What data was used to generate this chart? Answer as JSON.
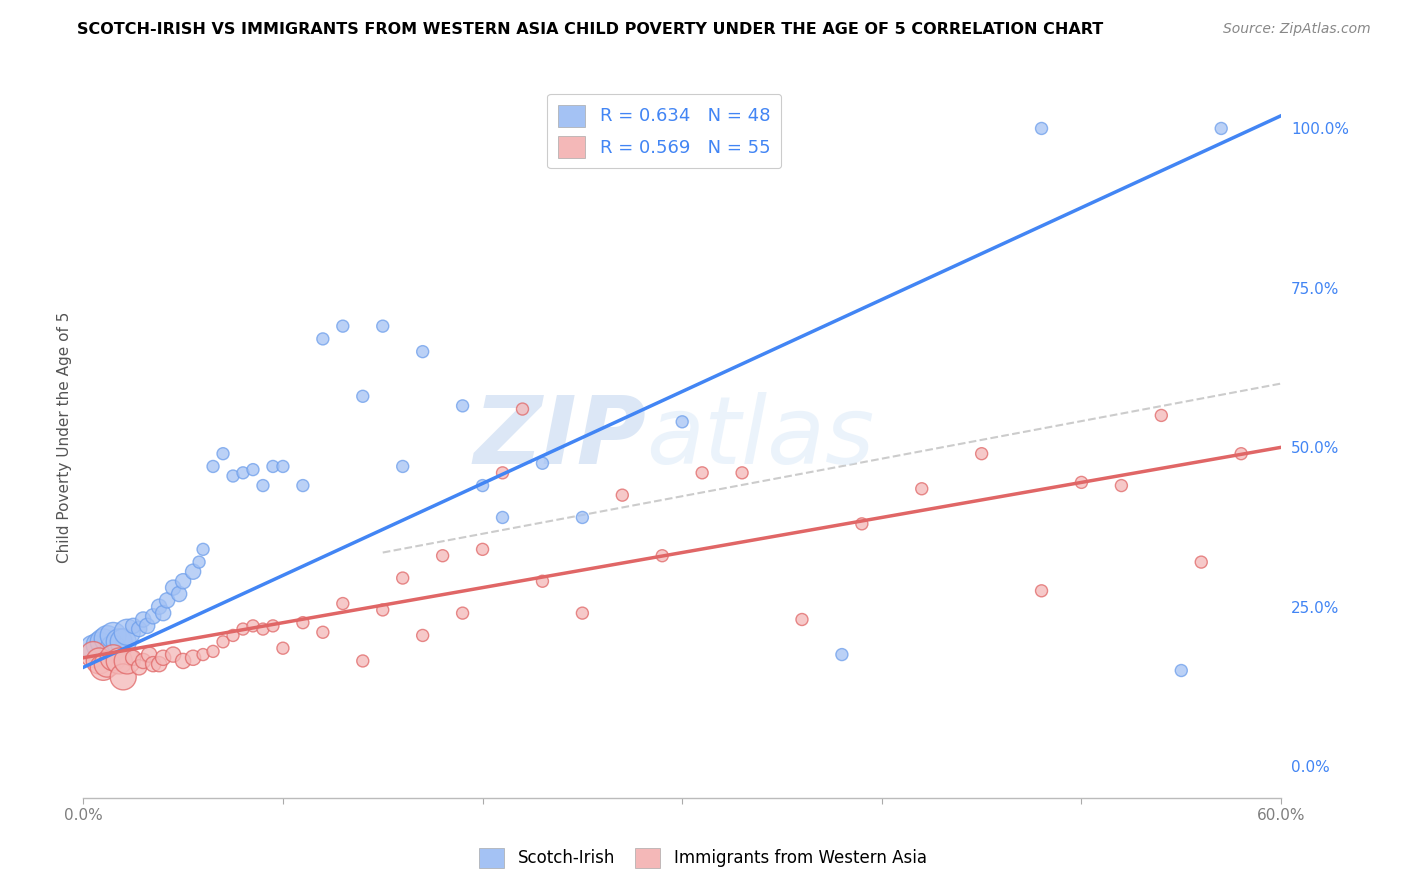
{
  "title": "SCOTCH-IRISH VS IMMIGRANTS FROM WESTERN ASIA CHILD POVERTY UNDER THE AGE OF 5 CORRELATION CHART",
  "source": "Source: ZipAtlas.com",
  "ylabel": "Child Poverty Under the Age of 5",
  "xlim": [
    0.0,
    0.6
  ],
  "ylim": [
    -0.05,
    1.08
  ],
  "xticks": [
    0.0,
    0.1,
    0.2,
    0.3,
    0.4,
    0.5,
    0.6
  ],
  "xticklabels": [
    "0.0%",
    "",
    "",
    "",
    "",
    "",
    "60.0%"
  ],
  "yticks_right": [
    0.0,
    0.25,
    0.5,
    0.75,
    1.0
  ],
  "yticklabels_right": [
    "0.0%",
    "25.0%",
    "50.0%",
    "75.0%",
    "100.0%"
  ],
  "blue_color": "#a4c2f4",
  "pink_color": "#f4b8b8",
  "blue_edge_color": "#6d9eeb",
  "pink_edge_color": "#e06666",
  "blue_line_color": "#4285f4",
  "pink_line_color": "#e06666",
  "dashed_line_color": "#cccccc",
  "legend_R_blue": "R = 0.634",
  "legend_N_blue": "N = 48",
  "legend_R_pink": "R = 0.569",
  "legend_N_pink": "N = 55",
  "blue_scatter_x": [
    0.005,
    0.008,
    0.01,
    0.012,
    0.015,
    0.015,
    0.018,
    0.02,
    0.022,
    0.025,
    0.028,
    0.03,
    0.032,
    0.035,
    0.038,
    0.04,
    0.042,
    0.045,
    0.048,
    0.05,
    0.055,
    0.058,
    0.06,
    0.065,
    0.07,
    0.075,
    0.08,
    0.085,
    0.09,
    0.095,
    0.1,
    0.11,
    0.12,
    0.13,
    0.14,
    0.15,
    0.16,
    0.17,
    0.19,
    0.2,
    0.21,
    0.23,
    0.25,
    0.3,
    0.38,
    0.48,
    0.55,
    0.57
  ],
  "blue_scatter_y": [
    0.185,
    0.19,
    0.195,
    0.2,
    0.185,
    0.205,
    0.195,
    0.195,
    0.21,
    0.22,
    0.215,
    0.23,
    0.22,
    0.235,
    0.25,
    0.24,
    0.26,
    0.28,
    0.27,
    0.29,
    0.305,
    0.32,
    0.34,
    0.47,
    0.49,
    0.455,
    0.46,
    0.465,
    0.44,
    0.47,
    0.47,
    0.44,
    0.67,
    0.69,
    0.58,
    0.69,
    0.47,
    0.65,
    0.565,
    0.44,
    0.39,
    0.475,
    0.39,
    0.54,
    0.175,
    1.0,
    0.15,
    1.0
  ],
  "pink_scatter_x": [
    0.005,
    0.008,
    0.01,
    0.012,
    0.015,
    0.018,
    0.02,
    0.022,
    0.025,
    0.028,
    0.03,
    0.033,
    0.035,
    0.038,
    0.04,
    0.045,
    0.05,
    0.055,
    0.06,
    0.065,
    0.07,
    0.075,
    0.08,
    0.085,
    0.09,
    0.095,
    0.1,
    0.11,
    0.12,
    0.13,
    0.14,
    0.15,
    0.16,
    0.17,
    0.18,
    0.19,
    0.2,
    0.21,
    0.22,
    0.23,
    0.25,
    0.27,
    0.29,
    0.31,
    0.33,
    0.36,
    0.39,
    0.42,
    0.45,
    0.48,
    0.5,
    0.52,
    0.54,
    0.56,
    0.58
  ],
  "pink_scatter_y": [
    0.175,
    0.165,
    0.155,
    0.16,
    0.17,
    0.165,
    0.14,
    0.165,
    0.17,
    0.155,
    0.165,
    0.175,
    0.16,
    0.16,
    0.17,
    0.175,
    0.165,
    0.17,
    0.175,
    0.18,
    0.195,
    0.205,
    0.215,
    0.22,
    0.215,
    0.22,
    0.185,
    0.225,
    0.21,
    0.255,
    0.165,
    0.245,
    0.295,
    0.205,
    0.33,
    0.24,
    0.34,
    0.46,
    0.56,
    0.29,
    0.24,
    0.425,
    0.33,
    0.46,
    0.46,
    0.23,
    0.38,
    0.435,
    0.49,
    0.275,
    0.445,
    0.44,
    0.55,
    0.32,
    0.49
  ],
  "blue_line_x": [
    0.0,
    0.6
  ],
  "blue_line_y": [
    0.155,
    1.02
  ],
  "pink_line_x": [
    0.0,
    0.6
  ],
  "pink_line_y": [
    0.17,
    0.5
  ],
  "dashed_line_x": [
    0.15,
    0.6
  ],
  "dashed_line_y": [
    0.335,
    0.6
  ],
  "watermark_zip": "ZIP",
  "watermark_atlas": "atlas",
  "background_color": "#ffffff",
  "grid_color": "#e0e0e0",
  "tick_color": "#7f7f7f",
  "title_color": "#000000",
  "source_color": "#888888",
  "ylabel_color": "#555555",
  "right_tick_color": "#4285f4"
}
